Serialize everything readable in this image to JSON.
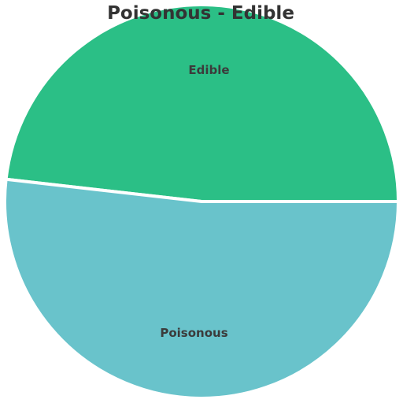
{
  "chart_data": {
    "type": "pie",
    "title": "Poisonous - Edible",
    "slices": [
      {
        "label": "Edible",
        "value": 48.2,
        "color": "#2bbf86"
      },
      {
        "label": "Poisonous",
        "value": 51.8,
        "color": "#69c3cb"
      }
    ]
  }
}
